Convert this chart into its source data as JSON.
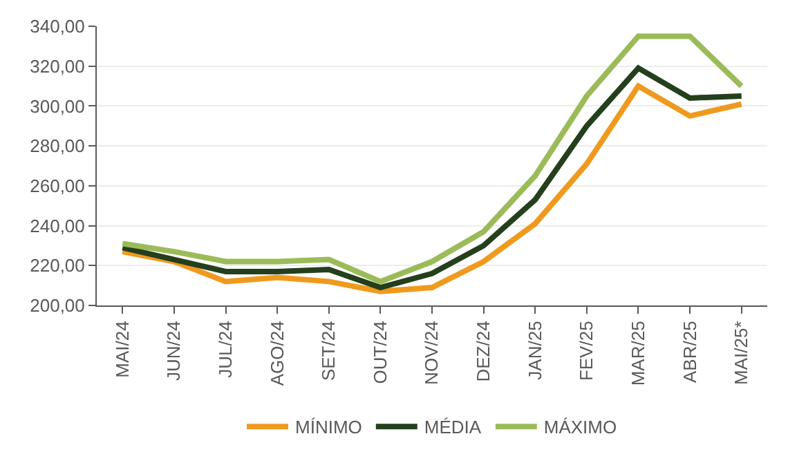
{
  "chart_data": {
    "type": "line",
    "categories": [
      "MAI/24",
      "JUN/24",
      "JUL/24",
      "AGO/24",
      "SET/24",
      "OUT/24",
      "NOV/24",
      "DEZ/24",
      "JAN/25",
      "FEV/25",
      "MAR/25",
      "ABR/25",
      "MAI/25*"
    ],
    "series": [
      {
        "name": "MÍNIMO",
        "color": "#ef9a1e",
        "values": [
          227,
          222,
          212,
          214,
          212,
          207,
          209,
          222,
          241,
          271,
          310,
          295,
          301
        ]
      },
      {
        "name": "MÉDIA",
        "color": "#243f1c",
        "values": [
          229,
          223,
          217,
          217,
          218,
          209,
          216,
          230,
          253,
          290,
          319,
          304,
          305
        ]
      },
      {
        "name": "MÁXIMO",
        "color": "#9bbb59",
        "values": [
          231,
          227,
          222,
          222,
          223,
          212,
          222,
          237,
          265,
          305,
          335,
          335,
          310
        ]
      }
    ],
    "ylim": [
      200,
      340
    ],
    "yticks": [
      {
        "value": 200,
        "label": "200,00"
      },
      {
        "value": 220,
        "label": "220,00"
      },
      {
        "value": 240,
        "label": "240,00"
      },
      {
        "value": 260,
        "label": "260,00"
      },
      {
        "value": 280,
        "label": "280,00"
      },
      {
        "value": 300,
        "label": "300,00"
      },
      {
        "value": 320,
        "label": "320,00"
      },
      {
        "value": 340,
        "label": "340,00"
      }
    ],
    "grid": "y",
    "legend": "bottom",
    "marker": "none",
    "line_style": "solid"
  }
}
